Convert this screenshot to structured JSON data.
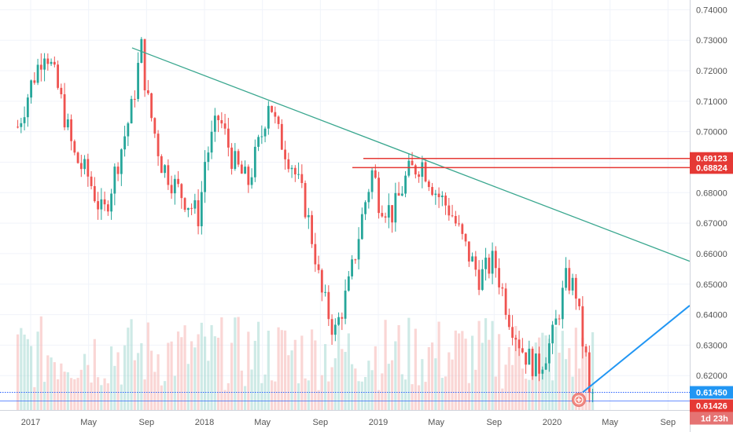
{
  "chart_data": {
    "type": "candlestick",
    "title": "",
    "grid": true,
    "y_axis": {
      "position": "right",
      "ylim": [
        0.6015,
        0.7432
      ],
      "ticks": [
        "0.74000",
        "0.73000",
        "0.72000",
        "0.71000",
        "0.70000",
        "0.69000",
        "0.68000",
        "0.67000",
        "0.66000",
        "0.65000",
        "0.64000",
        "0.63000",
        "0.62000"
      ]
    },
    "x_axis": {
      "ticks": [
        "2017",
        "May",
        "Sep",
        "2018",
        "May",
        "Sep",
        "2019",
        "May",
        "Sep",
        "2020",
        "May",
        "Sep"
      ]
    },
    "colors": {
      "up": "#26a69a",
      "down": "#ef5350",
      "trendline": "#3aa78f",
      "resistance": "#e53935",
      "projection": "#2196f3",
      "price": "#2196f3",
      "axis_text": "#555555"
    },
    "resistance_levels": [
      {
        "value": 0.69123,
        "label": "0.69123"
      },
      {
        "value": 0.68824,
        "label": "0.68824"
      }
    ],
    "price_labels": [
      {
        "value": 0.6145,
        "label": "0.61450"
      },
      {
        "value": 0.61426,
        "label": "0.61426"
      }
    ],
    "countdown_label": "1d 23h",
    "trendline": {
      "from": [
        "2017-08",
        0.7275
      ],
      "to": [
        "2020-10",
        0.6575
      ]
    },
    "projection_line": {
      "from": [
        "2020-03",
        0.6145
      ],
      "to": [
        "2020-10",
        0.643
      ]
    },
    "price_path": [
      [
        "2016-12",
        0.7
      ],
      [
        "2017-01",
        0.715
      ],
      [
        "2017-02",
        0.728
      ],
      [
        "2017-03",
        0.712
      ],
      [
        "2017-04",
        0.692
      ],
      [
        "2017-05",
        0.685
      ],
      [
        "2017-06",
        0.672
      ],
      [
        "2017-07",
        0.69
      ],
      [
        "2017-08",
        0.708
      ],
      [
        "2017-08-20",
        0.728
      ],
      [
        "2017-09",
        0.712
      ],
      [
        "2017-10",
        0.69
      ],
      [
        "2017-11",
        0.682
      ],
      [
        "2017-12",
        0.676
      ],
      [
        "2017-12-20",
        0.672
      ],
      [
        "2018-01",
        0.69
      ],
      [
        "2018-02",
        0.705
      ],
      [
        "2018-03",
        0.69
      ],
      [
        "2018-04",
        0.683
      ],
      [
        "2018-05",
        0.7
      ],
      [
        "2018-05-15",
        0.712
      ],
      [
        "2018-06",
        0.7
      ],
      [
        "2018-07",
        0.69
      ],
      [
        "2018-08",
        0.675
      ],
      [
        "2018-08-20",
        0.66
      ],
      [
        "2018-09",
        0.648
      ],
      [
        "2018-10",
        0.634
      ],
      [
        "2018-11",
        0.65
      ],
      [
        "2018-12",
        0.675
      ],
      [
        "2018-12-20",
        0.688
      ],
      [
        "2019-01",
        0.678
      ],
      [
        "2019-02",
        0.673
      ],
      [
        "2019-03",
        0.686
      ],
      [
        "2019-04",
        0.69
      ],
      [
        "2019-05",
        0.68
      ],
      [
        "2019-06",
        0.674
      ],
      [
        "2019-07",
        0.662
      ],
      [
        "2019-08",
        0.652
      ],
      [
        "2019-09",
        0.658
      ],
      [
        "2019-10",
        0.64
      ],
      [
        "2019-11",
        0.628
      ],
      [
        "2019-12",
        0.622
      ],
      [
        "2020-01",
        0.632
      ],
      [
        "2020-02",
        0.652
      ],
      [
        "2020-02-20",
        0.648
      ],
      [
        "2020-03",
        0.634
      ],
      [
        "2020-03-15",
        0.622
      ],
      [
        "2020-03-25",
        0.6145
      ]
    ]
  }
}
